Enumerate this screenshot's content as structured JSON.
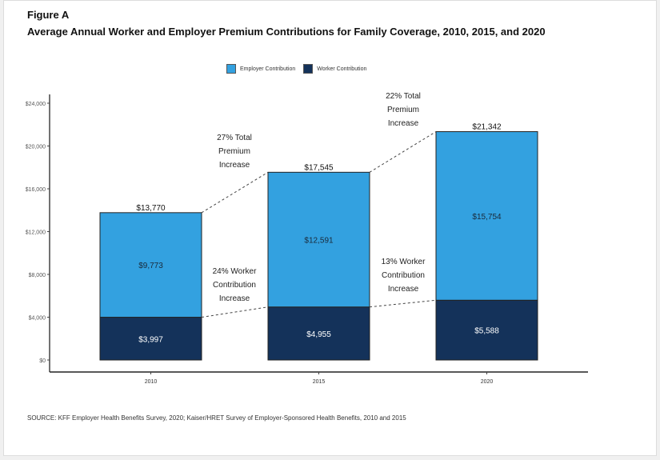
{
  "figure_label": "Figure A",
  "chart_data": {
    "type": "bar",
    "stacked": true,
    "title": "Average Annual Worker and Employer Premium Contributions for Family Coverage, 2010, 2015, and 2020",
    "categories": [
      "2010",
      "2015",
      "2020"
    ],
    "series": [
      {
        "name": "Worker Contribution",
        "values": [
          3997,
          4955,
          5588
        ],
        "labels": [
          "$3,997",
          "$4,955",
          "$5,588"
        ],
        "color": "#14325a"
      },
      {
        "name": "Employer Contribution",
        "values": [
          9773,
          12591,
          15754
        ],
        "labels": [
          "$9,773",
          "$12,591",
          "$15,754"
        ],
        "color": "#33a1e0"
      }
    ],
    "totals": [
      13770,
      17545,
      21342
    ],
    "total_labels": [
      "$13,770",
      "$17,545",
      "$21,342"
    ],
    "ylim": [
      0,
      24000
    ],
    "yticks": [
      0,
      4000,
      8000,
      12000,
      16000,
      20000,
      24000
    ],
    "ytick_labels": [
      "$0",
      "$4,000",
      "$8,000",
      "$12,000",
      "$16,000",
      "$20,000",
      "$24,000"
    ],
    "legend_position": "top",
    "grid": false,
    "annotations": [
      {
        "lines": [
          "27% Total",
          "Premium",
          "Increase"
        ]
      },
      {
        "lines": [
          "22% Total",
          "Premium",
          "Increase"
        ]
      },
      {
        "lines": [
          "24% Worker",
          "Contribution",
          "Increase"
        ]
      },
      {
        "lines": [
          "13% Worker",
          "Contribution",
          "Increase"
        ]
      }
    ]
  },
  "source": "SOURCE: KFF Employer Health Benefits Survey, 2020; Kaiser/HRET Survey of Employer-Sponsored Health Benefits, 2010 and 2015"
}
